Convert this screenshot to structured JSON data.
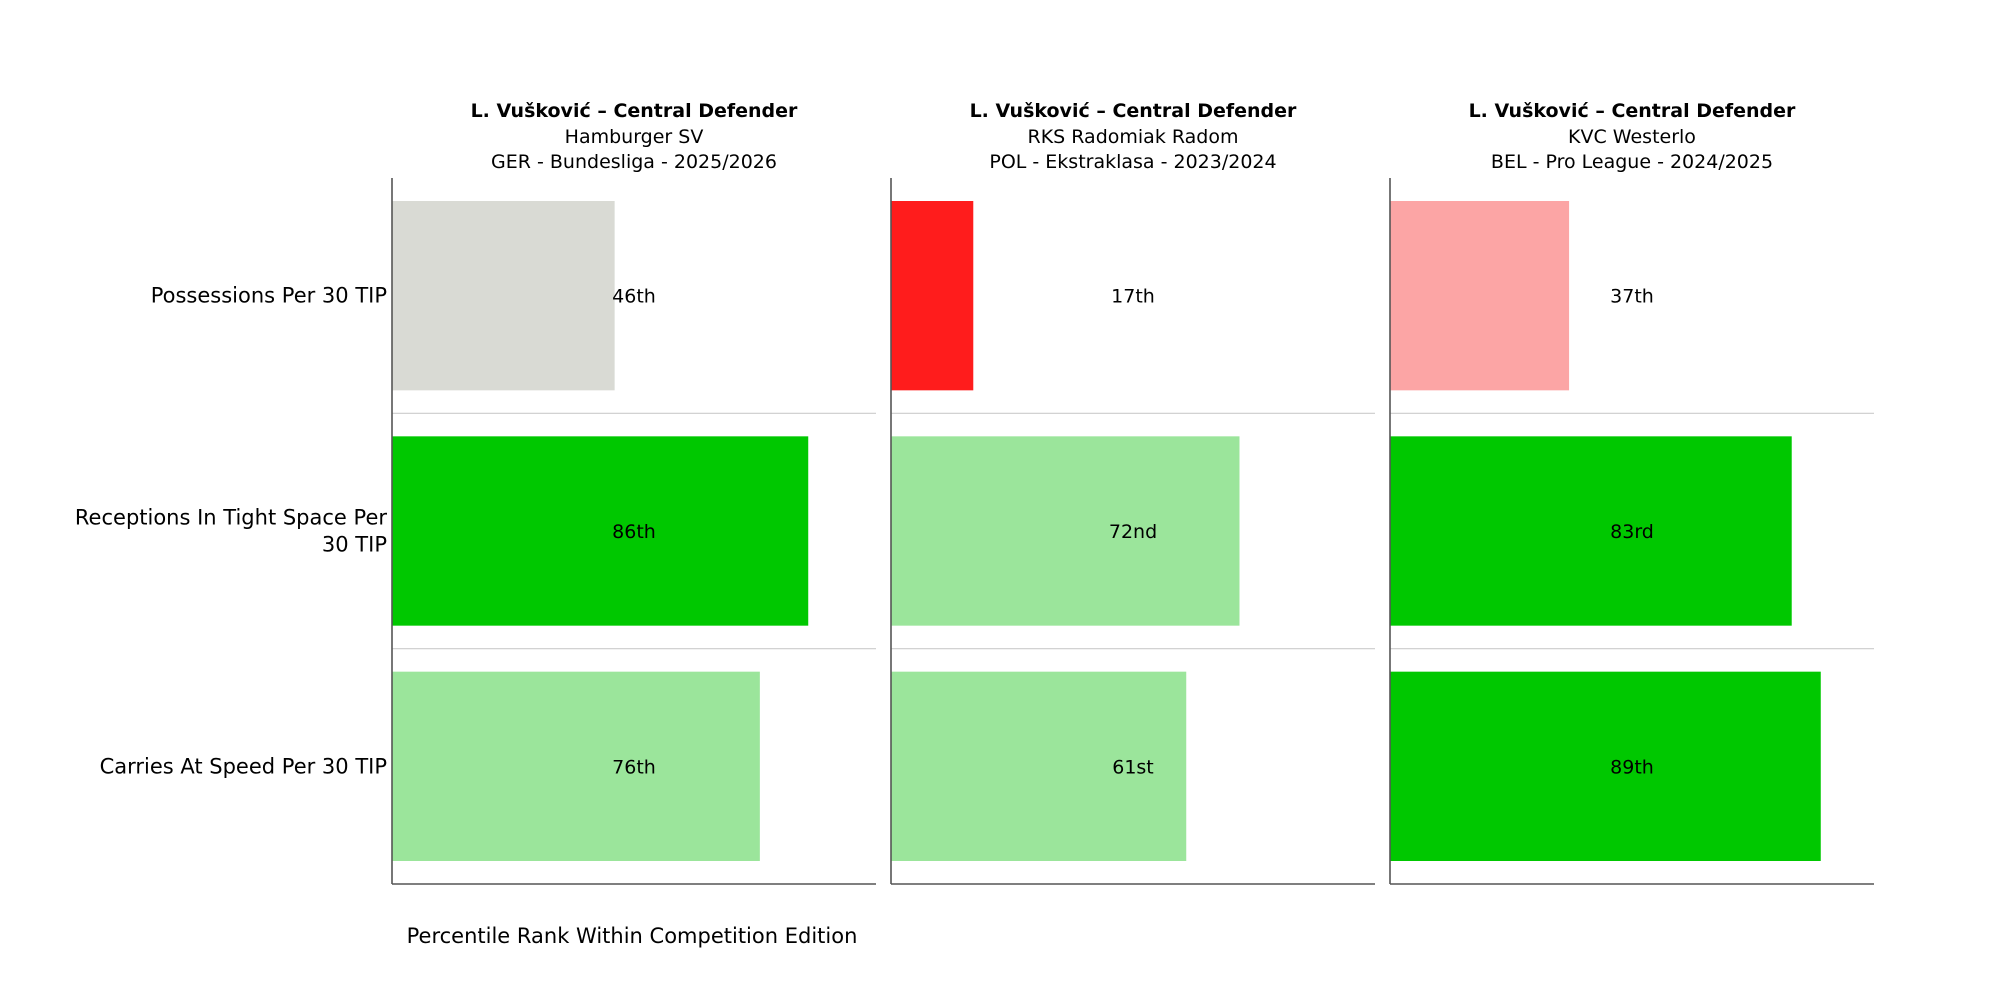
{
  "chart_data": {
    "type": "bar",
    "orientation": "horizontal",
    "xlabel": "Percentile Rank Within Competition Edition",
    "xlim": [
      0,
      100
    ],
    "categories": [
      "Possessions Per 30 TIP",
      "Receptions In Tight Space Per 30 TIP",
      "Carries At Speed Per 30 TIP"
    ],
    "category_lines": [
      [
        "Possessions Per 30 TIP"
      ],
      [
        "Receptions In Tight Space Per",
        "30 TIP"
      ],
      [
        "Carries At Speed Per 30 TIP"
      ]
    ],
    "colors": {
      "bottom": "#ff1c1c",
      "below_avg": "#fca5a5",
      "average": "#d9dad4",
      "above_avg": "#9be59b",
      "top": "#00c800"
    },
    "series": [
      {
        "title": "L. Vušković – Central Defender",
        "team": "Hamburger SV",
        "competition": "GER - Bundesliga - 2025/2026",
        "values": [
          46,
          86,
          76
        ],
        "labels": [
          "46th",
          "86th",
          "76th"
        ],
        "colors": [
          "#d9dad4",
          "#00c800",
          "#9be59b"
        ]
      },
      {
        "title": "L. Vušković – Central Defender",
        "team": "RKS Radomiak Radom",
        "competition": "POL - Ekstraklasa - 2023/2024",
        "values": [
          17,
          72,
          61
        ],
        "labels": [
          "17th",
          "72nd",
          "61st"
        ],
        "colors": [
          "#ff1c1c",
          "#9be59b",
          "#9be59b"
        ]
      },
      {
        "title": "L. Vušković – Central Defender",
        "team": "KVC Westerlo",
        "competition": "BEL - Pro League - 2024/2025",
        "values": [
          37,
          83,
          89
        ],
        "labels": [
          "37th",
          "83rd",
          "89th"
        ],
        "colors": [
          "#fca5a5",
          "#00c800",
          "#00c800"
        ]
      }
    ]
  }
}
